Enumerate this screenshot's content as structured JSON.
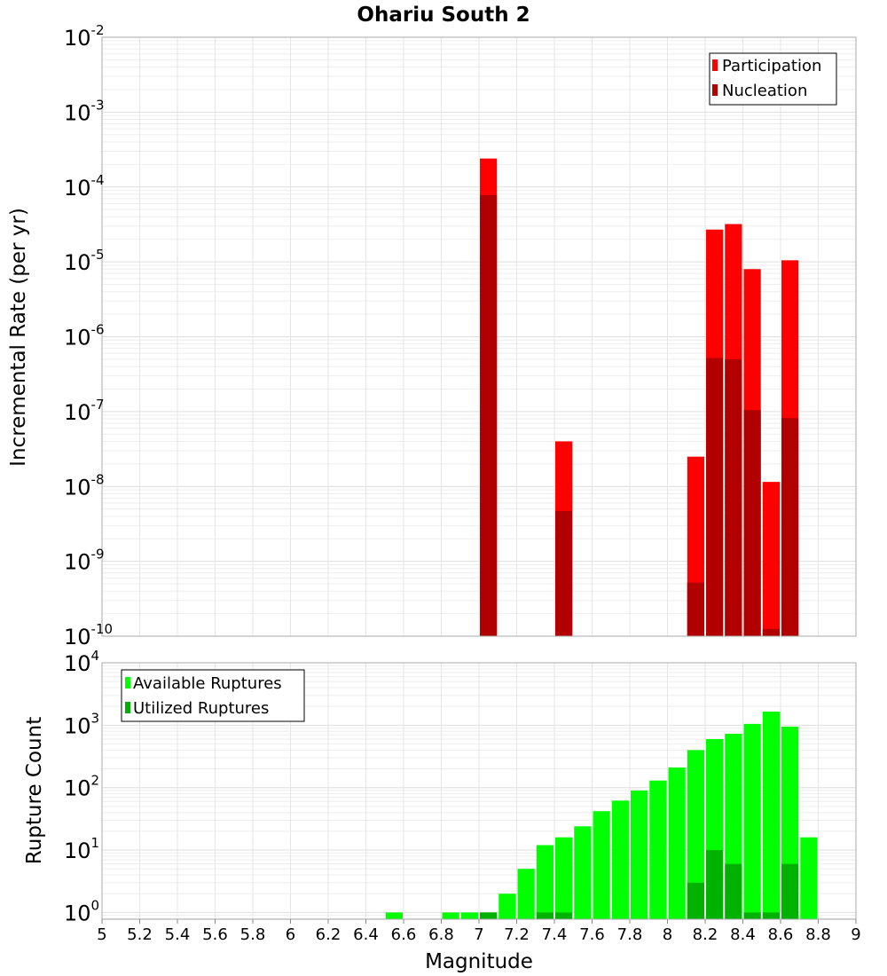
{
  "chart_data": [
    {
      "type": "bar",
      "title": "Ohariu South 2",
      "xlabel": "",
      "ylabel": "Incremental Rate (per yr)",
      "yscale": "log",
      "ylim": [
        1e-10,
        0.01
      ],
      "xlim": [
        5,
        9
      ],
      "legend_position": "top-right",
      "yticks": [
        {
          "base": "10",
          "exp": "-10"
        },
        {
          "base": "10",
          "exp": "-9"
        },
        {
          "base": "10",
          "exp": "-8"
        },
        {
          "base": "10",
          "exp": "-7"
        },
        {
          "base": "10",
          "exp": "-6"
        },
        {
          "base": "10",
          "exp": "-5"
        },
        {
          "base": "10",
          "exp": "-4"
        },
        {
          "base": "10",
          "exp": "-3"
        },
        {
          "base": "10",
          "exp": "-2"
        }
      ],
      "series": [
        {
          "name": "Participation",
          "color": "#ff0000",
          "x": [
            7.05,
            7.45,
            8.15,
            8.25,
            8.35,
            8.45,
            8.55,
            8.65
          ],
          "values": [
            0.00024,
            4e-08,
            2.5e-08,
            2.7e-05,
            3.2e-05,
            8e-06,
            1.15e-08,
            1.05e-05
          ]
        },
        {
          "name": "Nucleation",
          "color": "#b20000",
          "x": [
            7.05,
            7.45,
            8.15,
            8.25,
            8.35,
            8.45,
            8.55,
            8.65
          ],
          "values": [
            7.8e-05,
            4.7e-09,
            5.2e-10,
            5.2e-07,
            5e-07,
            1.05e-07,
            1.25e-10,
            8.2e-08
          ]
        }
      ]
    },
    {
      "type": "bar",
      "title": "",
      "xlabel": "Magnitude",
      "ylabel": "Rupture Count",
      "yscale": "log",
      "ylim": [
        0.78,
        10000
      ],
      "xlim": [
        5,
        9
      ],
      "legend_position": "top-left",
      "x_tick_labels": [
        "5",
        "5.2",
        "5.4",
        "5.6",
        "5.8",
        "6",
        "6.2",
        "6.4",
        "6.6",
        "6.8",
        "7",
        "7.2",
        "7.4",
        "7.6",
        "7.8",
        "8",
        "8.2",
        "8.4",
        "8.6",
        "8.8",
        "9"
      ],
      "yticks": [
        {
          "base": "10",
          "exp": "0"
        },
        {
          "base": "10",
          "exp": "1"
        },
        {
          "base": "10",
          "exp": "2"
        },
        {
          "base": "10",
          "exp": "3"
        },
        {
          "base": "10",
          "exp": "4"
        }
      ],
      "series": [
        {
          "name": "Available Ruptures",
          "color": "#00ff00",
          "x": [
            6.55,
            6.85,
            6.95,
            7.05,
            7.15,
            7.25,
            7.35,
            7.45,
            7.55,
            7.65,
            7.75,
            7.85,
            7.95,
            8.05,
            8.15,
            8.25,
            8.35,
            8.45,
            8.55,
            8.65,
            8.75
          ],
          "values": [
            1,
            1,
            1,
            1,
            2,
            5,
            12,
            16,
            24,
            42,
            62,
            90,
            130,
            210,
            400,
            600,
            730,
            1050,
            1650,
            950,
            16
          ]
        },
        {
          "name": "Utilized Ruptures",
          "color": "#00b200",
          "x": [
            7.05,
            7.35,
            7.45,
            8.15,
            8.25,
            8.35,
            8.45,
            8.55,
            8.65
          ],
          "values": [
            1,
            1,
            1,
            3,
            10,
            6,
            1,
            1,
            6
          ]
        }
      ]
    }
  ]
}
